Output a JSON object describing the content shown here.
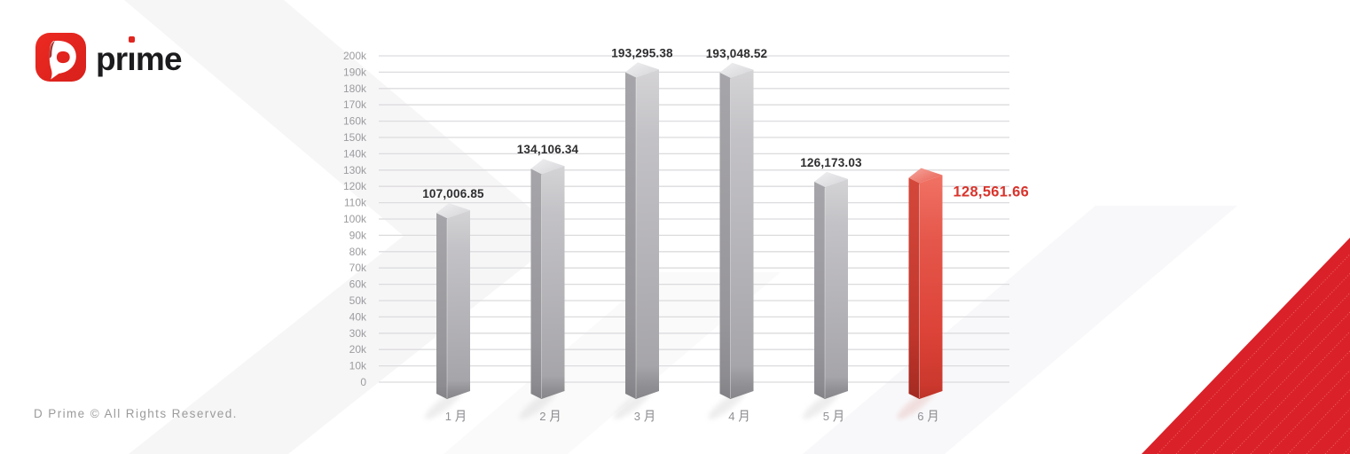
{
  "logo": {
    "icon": "d-prime-logo-icon",
    "brand_parts": {
      "pre": "pr",
      "i_stem": "ı",
      "post": "me"
    },
    "brand_text": "prime"
  },
  "footer": {
    "copyright": "D Prime © All Rights Reserved."
  },
  "colors": {
    "brand_red": "#e1251f",
    "grid": "#dcdbde",
    "axis_text": "#9c9ca0",
    "x_axis_text": "#919095",
    "value_label_text": "#2e2d2f",
    "highlight_label_text": "#d8342c",
    "bar_gray": "#b3b2b6",
    "bar_red": "#e2493e",
    "corner_red": "#da2129",
    "corner_stripe": "#f2837b"
  },
  "chart_data": {
    "type": "bar",
    "title": "",
    "xlabel": "",
    "ylabel": "",
    "categories": [
      "1 月",
      "2 月",
      "3 月",
      "4 月",
      "5 月",
      "6 月"
    ],
    "values": [
      107006.85,
      134106.34,
      193295.38,
      193048.52,
      126173.03,
      128561.66
    ],
    "value_labels": [
      "107,006.85",
      "134,106.34",
      "193,295.38",
      "193,048.52",
      "126,173.03",
      "128,561.66"
    ],
    "highlight_index": 5,
    "y_ticks": [
      "200k",
      "190k",
      "180k",
      "170k",
      "160k",
      "150k",
      "140k",
      "130k",
      "120k",
      "110k",
      "100k",
      "90k",
      "80k",
      "70k",
      "60k",
      "50k",
      "40k",
      "30k",
      "20k",
      "10k",
      "0"
    ],
    "ylim": [
      0,
      200000
    ],
    "grid": true,
    "legend": false,
    "bar_color": "#b3b2b6",
    "highlight_color": "#e2493e"
  }
}
